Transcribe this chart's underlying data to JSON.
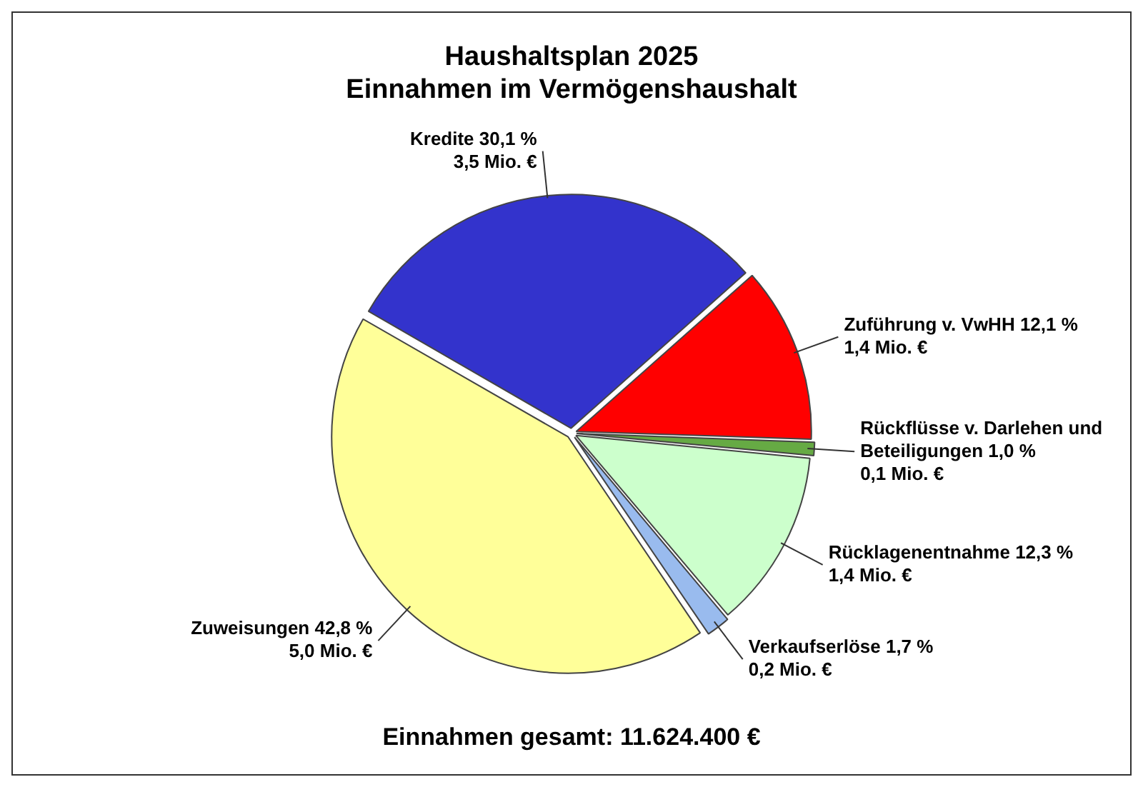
{
  "chart_data": {
    "type": "pie",
    "title": "Haushaltsplan 2025",
    "subtitle": "Einnahmen im Vermögenshaushalt",
    "categories": [
      "Kredite",
      "Zuführung v. VwHH",
      "Rückflüsse v. Darlehen und Beteiligungen",
      "Rücklagenentnahme",
      "Verkaufserlöse",
      "Zuweisungen"
    ],
    "values": [
      30.1,
      12.1,
      1.0,
      12.3,
      1.7,
      42.8
    ],
    "colors": [
      "#3333cc",
      "#ff0000",
      "#66aa44",
      "#ccffcc",
      "#99bbee",
      "#ffff99"
    ],
    "value_labels": [
      "30,1 %\n3,5 Mio. €",
      "12,1 %\n1,4 Mio. €",
      "1,0 %\n0,1 Mio. €",
      "12,3 %\n1,4 Mio. €",
      "1,7 %\n0,2 Mio. €",
      "42,8 %\n5,0 Mio. €"
    ],
    "annotations": [
      "Einnahmen gesamt: 11.624.400 €"
    ],
    "legend": false
  }
}
